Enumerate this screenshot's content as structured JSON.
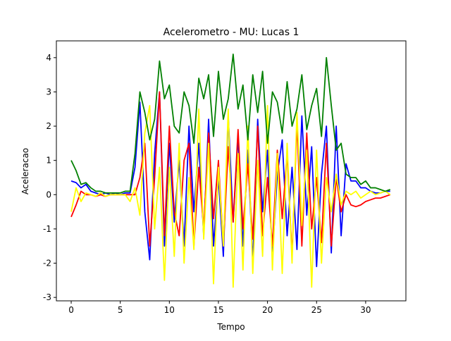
{
  "chart_data": {
    "type": "line",
    "title": "Acelerometro - MU: Lucas 1",
    "x_label": "Tempo",
    "y_label": "Aceleracao",
    "x": [
      0,
      0.5,
      1,
      1.5,
      2,
      2.5,
      3,
      3.5,
      4,
      4.5,
      5,
      5.5,
      6,
      6.5,
      7,
      7.5,
      8,
      8.5,
      9,
      9.5,
      10,
      10.5,
      11,
      11.5,
      12,
      12.5,
      13,
      13.5,
      14,
      14.5,
      15,
      15.5,
      16,
      16.5,
      17,
      17.5,
      18,
      18.5,
      19,
      19.5,
      20,
      20.5,
      21,
      21.5,
      22,
      22.5,
      23,
      23.5,
      24,
      24.5,
      25,
      25.5,
      26,
      26.5,
      27,
      27.5,
      28,
      28.5,
      29,
      29.5,
      30,
      30.5,
      31,
      31.5,
      32,
      32.5
    ],
    "series": [
      {
        "color": "#0000ff",
        "values": [
          0.4,
          0.35,
          0.2,
          0.3,
          0.1,
          0.05,
          0,
          0.05,
          0,
          0.05,
          0,
          0.05,
          0.05,
          0.8,
          2.7,
          -0.5,
          -1.9,
          1.2,
          3.0,
          -1.5,
          1.5,
          -0.8,
          1.0,
          -1.5,
          2.0,
          -0.5,
          1.5,
          -1.2,
          2.2,
          -1.5,
          0.5,
          -1.8,
          2.3,
          -0.8,
          1.7,
          -1.5,
          1.3,
          -2.0,
          2.2,
          -0.5,
          1.3,
          -1.8,
          0.6,
          1.6,
          -1.2,
          0.8,
          -1.6,
          2.3,
          -0.6,
          1.4,
          -2.1,
          0.6,
          2.0,
          -1.7,
          2.0,
          -1.2,
          0.9,
          0.4,
          0.4,
          0.2,
          0.2,
          0.1,
          0.05,
          0.05,
          0.1,
          0.1
        ]
      },
      {
        "color": "#ff0000",
        "values": [
          -0.65,
          -0.3,
          0.1,
          0,
          0,
          -0.05,
          0,
          -0.05,
          0,
          0,
          0,
          0,
          0,
          0,
          0.5,
          1.5,
          -1.5,
          0.5,
          3.0,
          -1.2,
          2.0,
          -0.5,
          -1.2,
          1.0,
          1.5,
          -1.5,
          0.8,
          -1.0,
          1.8,
          -0.7,
          1.0,
          -1.5,
          1.4,
          -0.8,
          1.9,
          -1.0,
          0.9,
          -1.3,
          2.0,
          -1.2,
          0.5,
          -1.5,
          1.3,
          -0.7,
          1.2,
          -1.8,
          2.1,
          -1.5,
          1.8,
          -1.0,
          0.5,
          -1.4,
          1.5,
          -1.5,
          0.5,
          -0.5,
          0,
          -0.3,
          -0.35,
          -0.3,
          -0.2,
          -0.15,
          -0.1,
          -0.1,
          -0.05,
          0
        ]
      },
      {
        "color": "#ffff00",
        "values": [
          -0.5,
          0.2,
          -0.2,
          0.05,
          0,
          -0.05,
          0.05,
          -0.05,
          0,
          0,
          0,
          0,
          -0.2,
          0.2,
          -0.6,
          1.8,
          2.6,
          -1.0,
          0.8,
          -2.5,
          0.8,
          -1.8,
          1.5,
          -2.0,
          0.5,
          -1.6,
          2.5,
          -1.3,
          1.5,
          -2.6,
          0.8,
          -1.5,
          2.5,
          -2.7,
          1.2,
          -2.2,
          2.0,
          -2.3,
          1.0,
          -1.8,
          2.6,
          -2.2,
          1.2,
          -2.3,
          1.5,
          -2.0,
          2.4,
          -0.9,
          1.3,
          -2.7,
          1.3,
          -2.0,
          0.5,
          -0.5,
          0.6,
          -0.3,
          0.1,
          0,
          0.1,
          -0.1,
          0,
          0.1,
          0,
          0.05,
          0.1,
          0
        ]
      },
      {
        "color": "#008000",
        "values": [
          1.0,
          0.7,
          0.3,
          0.35,
          0.2,
          0.1,
          0.1,
          0.05,
          0.05,
          0.05,
          0.05,
          0.1,
          0.1,
          1.2,
          3.0,
          2.4,
          1.6,
          2.2,
          3.9,
          2.8,
          3.2,
          2.0,
          1.8,
          3.0,
          2.6,
          1.5,
          3.4,
          2.8,
          3.5,
          1.7,
          3.6,
          2.2,
          2.8,
          4.1,
          2.5,
          3.2,
          1.6,
          3.5,
          2.4,
          3.6,
          1.5,
          3.0,
          2.7,
          1.8,
          3.3,
          2.0,
          2.5,
          3.5,
          1.9,
          2.6,
          3.1,
          1.7,
          4.0,
          2.6,
          1.3,
          1.5,
          0.6,
          0.5,
          0.5,
          0.3,
          0.4,
          0.2,
          0.2,
          0.15,
          0.1,
          0.15
        ]
      }
    ],
    "xlim": [
      -1.51,
      34.1
    ],
    "ylim": [
      -3.1,
      4.49
    ],
    "xticks": [
      0,
      5,
      10,
      15,
      20,
      25,
      30
    ],
    "yticks": [
      -3,
      -2,
      -1,
      0,
      1,
      2,
      3,
      4
    ]
  }
}
